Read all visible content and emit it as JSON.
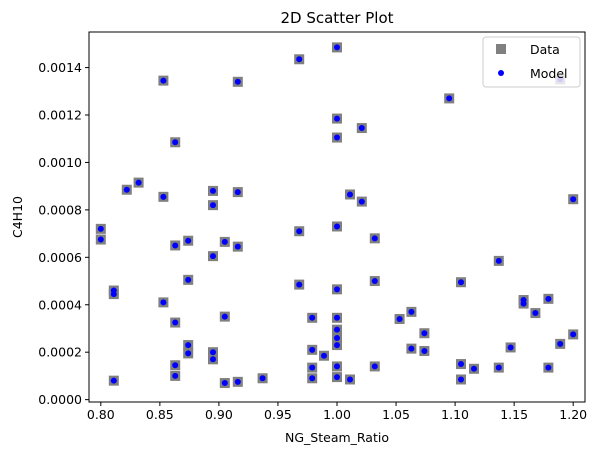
{
  "chart_data": {
    "type": "scatter",
    "title": "2D Scatter Plot",
    "xlabel": "NG_Steam_Ratio",
    "ylabel": "C4H10",
    "xlim": [
      0.79,
      1.21
    ],
    "ylim": [
      -1e-05,
      0.00155
    ],
    "x_ticks": [
      0.8,
      0.85,
      0.9,
      0.95,
      1.0,
      1.05,
      1.1,
      1.15,
      1.2
    ],
    "x_tick_labels": [
      "0.80",
      "0.85",
      "0.90",
      "0.95",
      "1.00",
      "1.05",
      "1.10",
      "1.15",
      "1.20"
    ],
    "y_ticks": [
      0.0,
      0.0002,
      0.0004,
      0.0006,
      0.0008,
      0.001,
      0.0012,
      0.0014
    ],
    "y_tick_labels": [
      "0.0000",
      "0.0002",
      "0.0004",
      "0.0006",
      "0.0008",
      "0.0010",
      "0.0012",
      "0.0014"
    ],
    "grid": false,
    "legend_position": "top-right",
    "series": [
      {
        "name": "Data",
        "marker": "square",
        "color": "#808080"
      },
      {
        "name": "Model",
        "marker": "circle",
        "color": "#0000ff"
      }
    ],
    "points": [
      [
        0.8,
        0.00072
      ],
      [
        0.8,
        0.000675
      ],
      [
        0.811,
        0.00046
      ],
      [
        0.811,
        0.000445
      ],
      [
        0.811,
        8e-05
      ],
      [
        0.822,
        0.000885
      ],
      [
        0.832,
        0.000915
      ],
      [
        0.853,
        0.001345
      ],
      [
        0.853,
        0.000855
      ],
      [
        0.853,
        0.00041
      ],
      [
        0.863,
        0.001085
      ],
      [
        0.863,
        0.00065
      ],
      [
        0.863,
        0.000325
      ],
      [
        0.863,
        0.000145
      ],
      [
        0.863,
        0.0001
      ],
      [
        0.874,
        0.00067
      ],
      [
        0.874,
        0.000505
      ],
      [
        0.874,
        0.00023
      ],
      [
        0.874,
        0.000195
      ],
      [
        0.895,
        0.00088
      ],
      [
        0.895,
        0.00082
      ],
      [
        0.895,
        0.000605
      ],
      [
        0.895,
        0.0002
      ],
      [
        0.895,
        0.00017
      ],
      [
        0.905,
        0.000665
      ],
      [
        0.905,
        0.00035
      ],
      [
        0.905,
        7e-05
      ],
      [
        0.916,
        0.00134
      ],
      [
        0.916,
        0.000875
      ],
      [
        0.916,
        0.000645
      ],
      [
        0.916,
        7.5e-05
      ],
      [
        0.937,
        9e-05
      ],
      [
        0.968,
        0.001435
      ],
      [
        0.968,
        0.00071
      ],
      [
        0.968,
        0.000485
      ],
      [
        0.979,
        0.000345
      ],
      [
        0.979,
        0.00021
      ],
      [
        0.979,
        0.000135
      ],
      [
        0.979,
        9e-05
      ],
      [
        0.989,
        0.000185
      ],
      [
        1.0,
        0.001485
      ],
      [
        1.0,
        0.001185
      ],
      [
        1.0,
        0.001105
      ],
      [
        1.0,
        0.00073
      ],
      [
        1.0,
        0.000465
      ],
      [
        1.0,
        0.000345
      ],
      [
        1.0,
        0.000295
      ],
      [
        1.0,
        0.00026
      ],
      [
        1.0,
        0.00023
      ],
      [
        1.0,
        0.00014
      ],
      [
        1.0,
        9.5e-05
      ],
      [
        1.011,
        0.000865
      ],
      [
        1.011,
        8.5e-05
      ],
      [
        1.021,
        0.001145
      ],
      [
        1.021,
        0.000835
      ],
      [
        1.032,
        0.00068
      ],
      [
        1.032,
        0.0005
      ],
      [
        1.032,
        0.00014
      ],
      [
        1.053,
        0.00034
      ],
      [
        1.063,
        0.00037
      ],
      [
        1.063,
        0.000215
      ],
      [
        1.074,
        0.00028
      ],
      [
        1.074,
        0.000205
      ],
      [
        1.095,
        0.00127
      ],
      [
        1.105,
        0.000495
      ],
      [
        1.105,
        0.00015
      ],
      [
        1.105,
        8.5e-05
      ],
      [
        1.116,
        0.00013
      ],
      [
        1.137,
        0.000585
      ],
      [
        1.137,
        0.000135
      ],
      [
        1.147,
        0.00022
      ],
      [
        1.158,
        0.00042
      ],
      [
        1.158,
        0.000405
      ],
      [
        1.168,
        0.000365
      ],
      [
        1.179,
        0.000425
      ],
      [
        1.179,
        0.000135
      ],
      [
        1.189,
        0.00135
      ],
      [
        1.189,
        0.000235
      ],
      [
        1.2,
        0.000845
      ],
      [
        1.2,
        0.000275
      ]
    ]
  }
}
